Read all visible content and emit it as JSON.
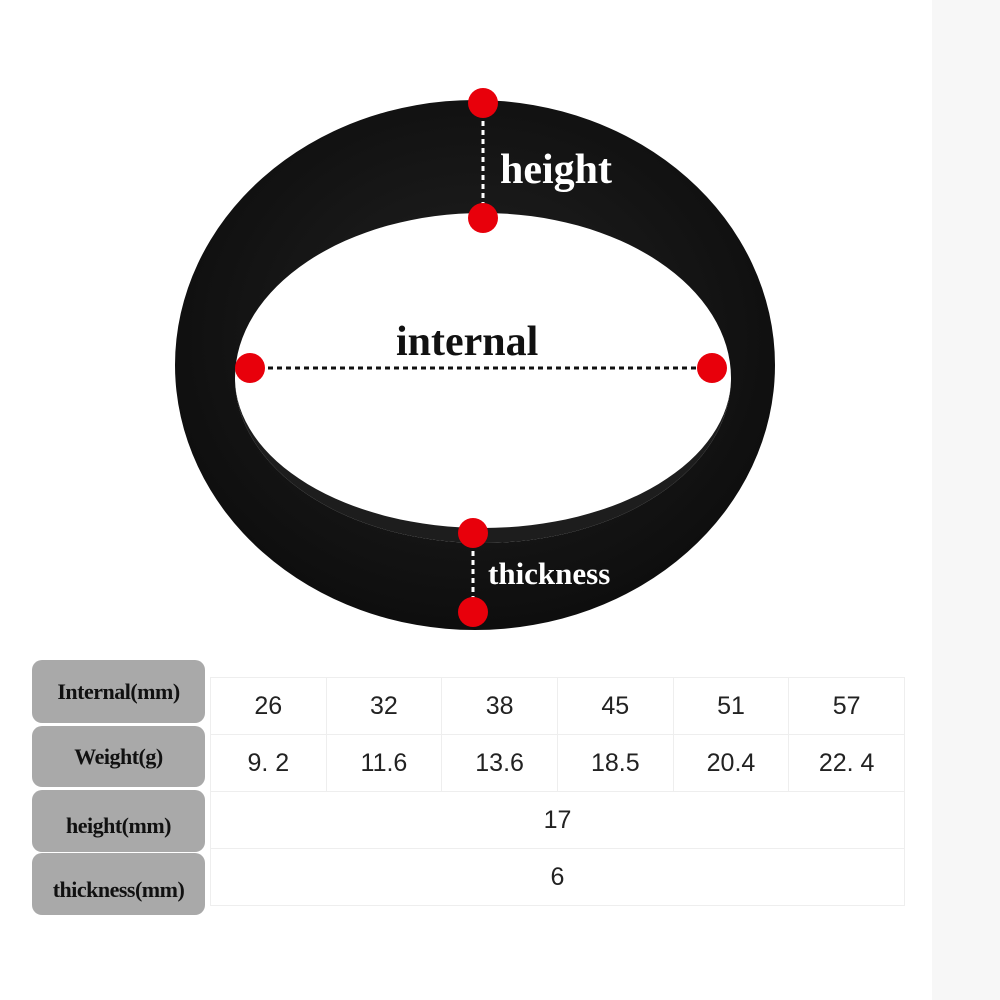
{
  "diagram": {
    "labels": {
      "height": "height",
      "internal": "internal",
      "thickness": "thickness"
    },
    "colors": {
      "ring": "#121212",
      "marker": "#e8000b",
      "background": "#ffffff"
    }
  },
  "table": {
    "row_headers": [
      "Internal(mm)",
      "Weight(g)",
      "height(mm)",
      "thickness(mm)"
    ],
    "internal_mm": [
      "26",
      "32",
      "38",
      "45",
      "51",
      "57"
    ],
    "weight_g": [
      "9. 2",
      "11.6",
      "13.6",
      "18.5",
      "20.4",
      "22. 4"
    ],
    "height_mm": "17",
    "thickness_mm": "6",
    "header_color": "#a9a9a9"
  }
}
